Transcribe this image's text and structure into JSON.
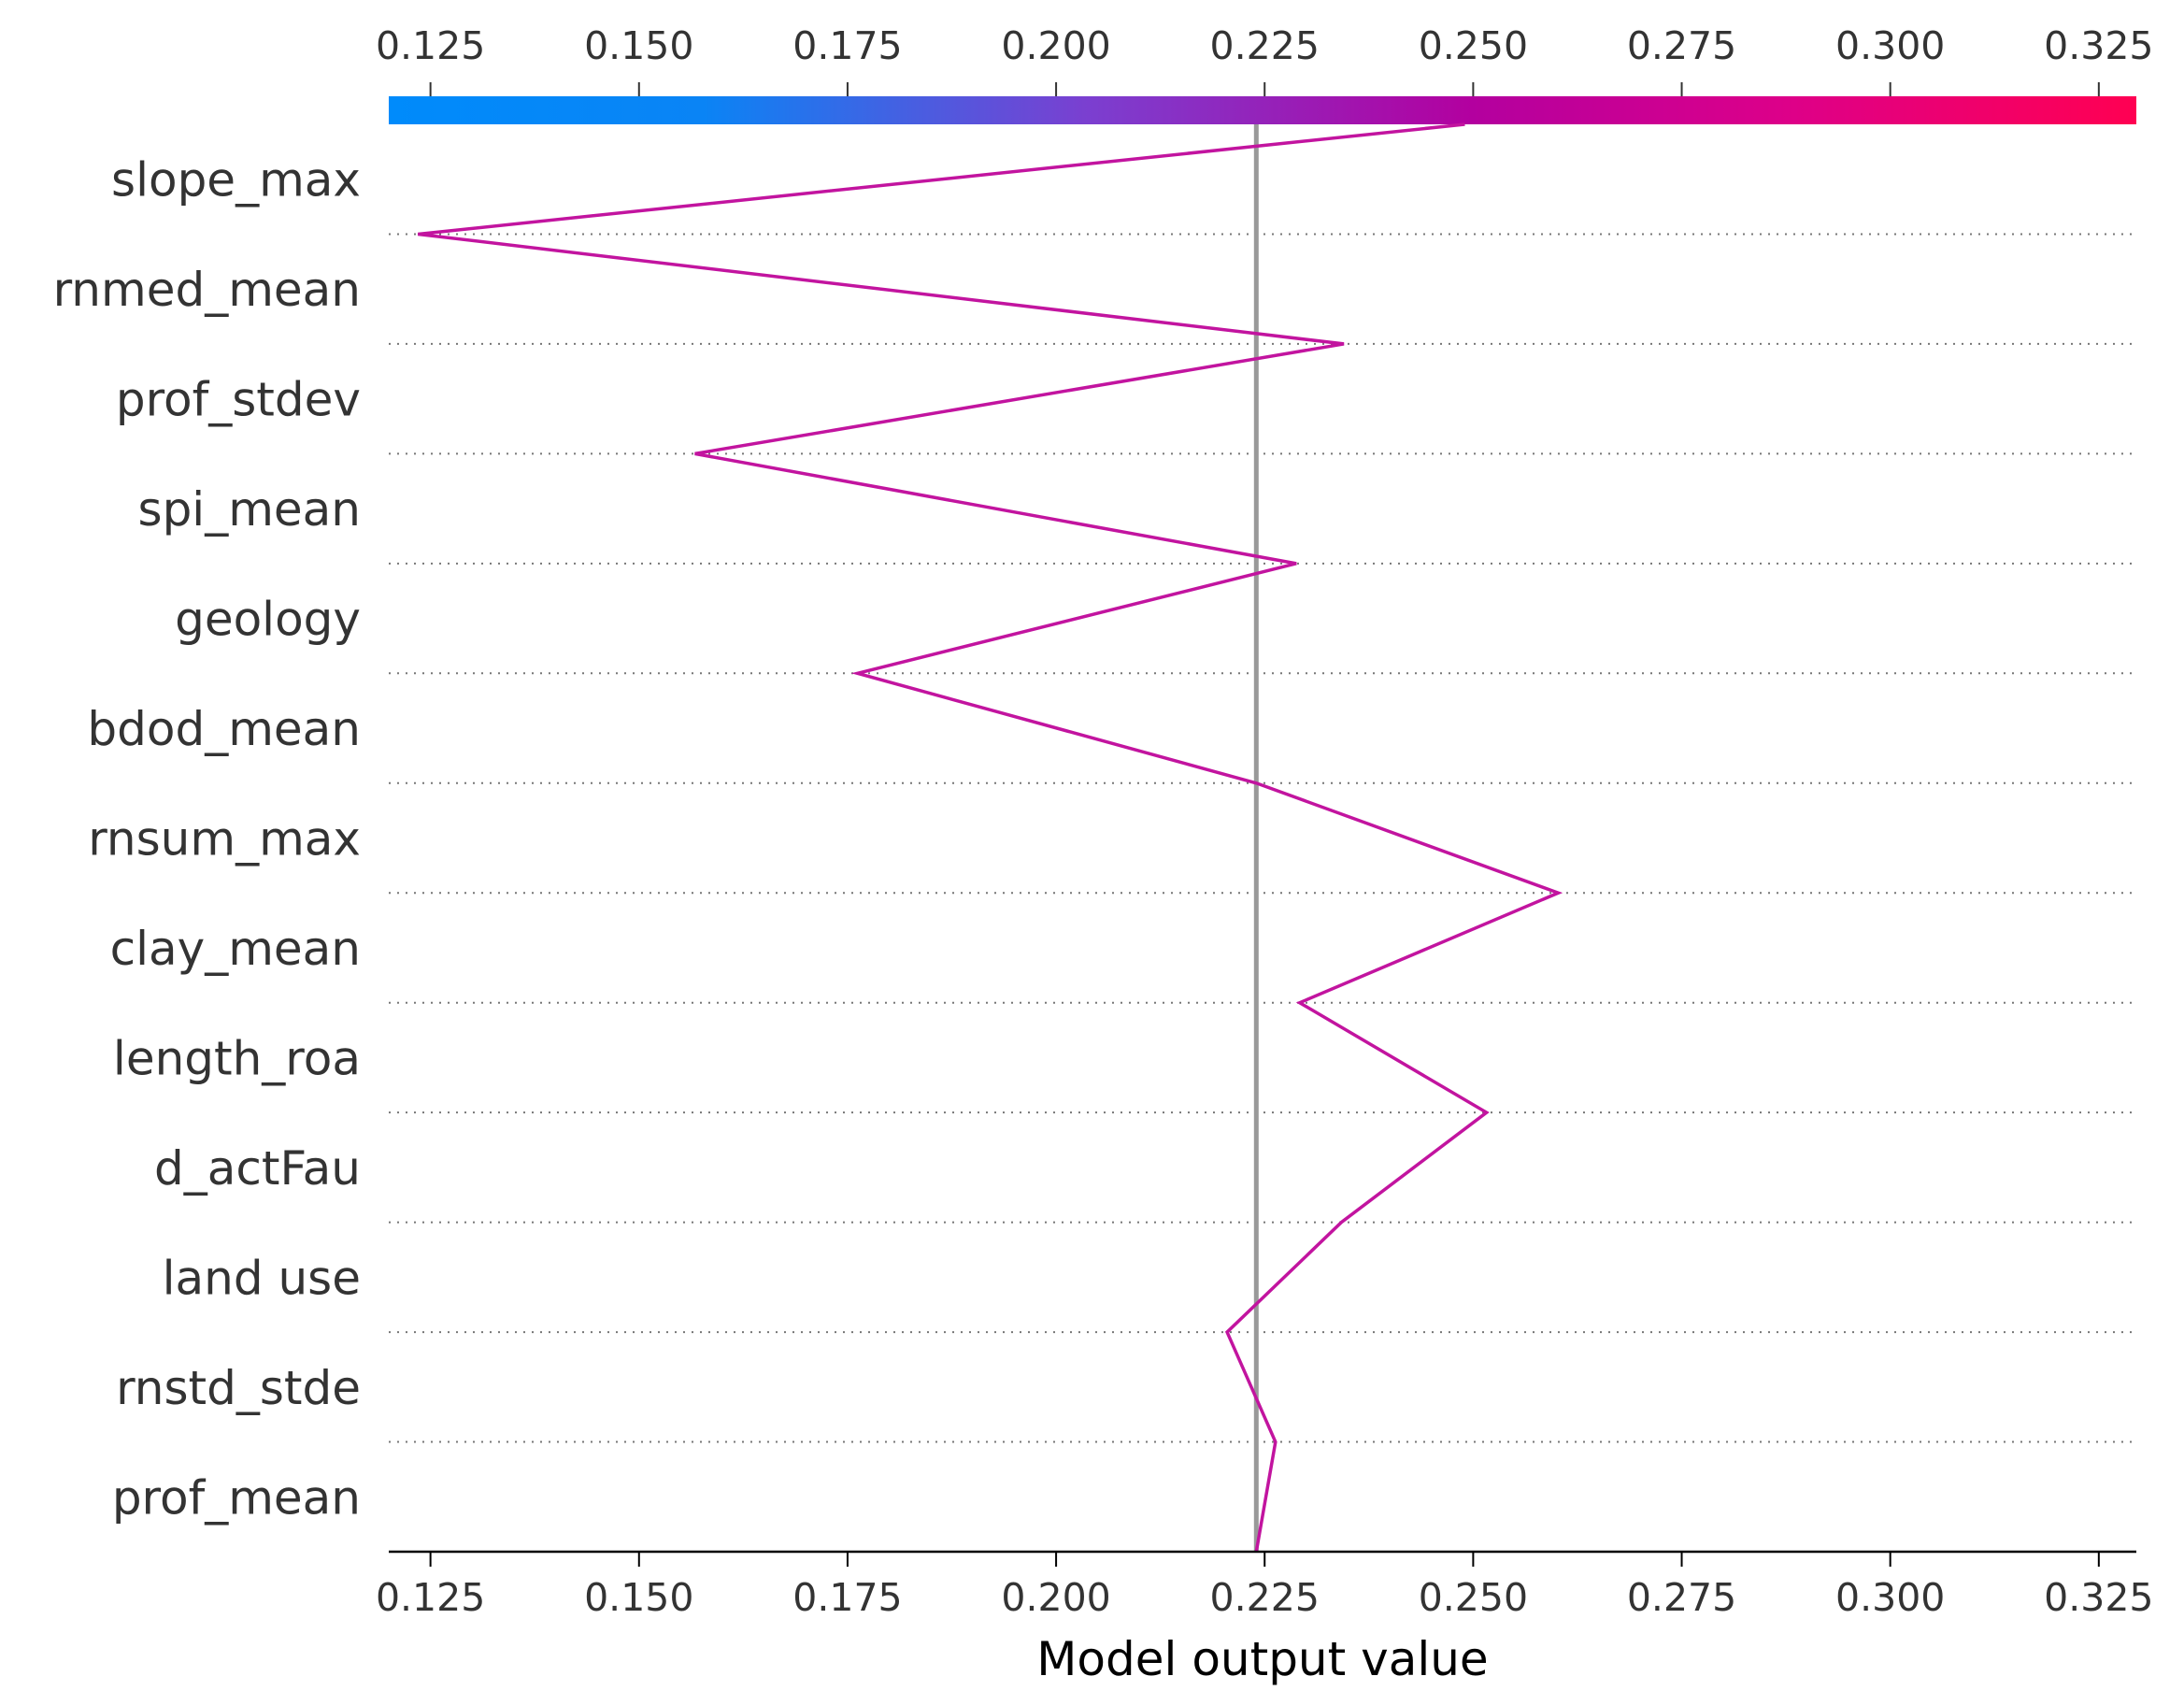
{
  "chart_data": {
    "type": "line",
    "title": "",
    "xlabel": "Model output value",
    "ylabel": "",
    "xlim": [
      0.12,
      0.3295
    ],
    "xticks": [
      0.125,
      0.15,
      0.175,
      0.2,
      0.225,
      0.25,
      0.275,
      0.3,
      0.325
    ],
    "xtick_labels": [
      "0.125",
      "0.150",
      "0.175",
      "0.200",
      "0.225",
      "0.250",
      "0.275",
      "0.300",
      "0.325"
    ],
    "features": [
      "slope_max",
      "rnmed_mean",
      "prof_stdev",
      "spi_mean",
      "geology",
      "bdod_mean",
      "rnsum_max",
      "clay_mean",
      "length_roa",
      "d_actFau",
      "land use",
      "rnstd_stde",
      "prof_mean"
    ],
    "base_value": 0.224,
    "path_points": [
      0.249,
      0.1235,
      0.2345,
      0.1567,
      0.2288,
      0.1762,
      0.224,
      0.2602,
      0.2292,
      0.2516,
      0.2342,
      0.2205,
      0.2263,
      0.224
    ],
    "grid": "dotted horizontal",
    "colorbar": {
      "range": [
        0.12,
        0.3295
      ],
      "colors": [
        "#008bfb",
        "#7b3fd0",
        "#c5009b",
        "#ff0052"
      ]
    },
    "colors": {
      "line": "#c2149f",
      "base_line": "#999999",
      "grid": "#777777",
      "text": "#333333"
    }
  }
}
